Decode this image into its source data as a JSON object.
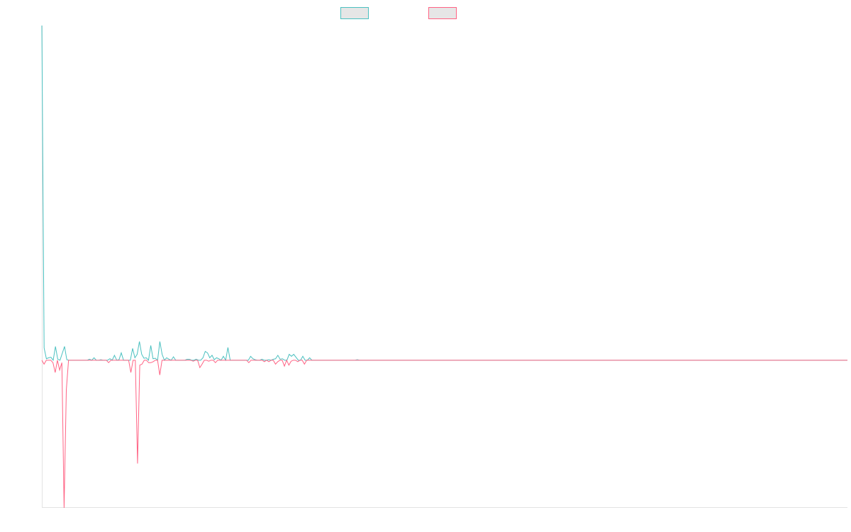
{
  "chart_data": {
    "type": "line",
    "title": "",
    "xlabel": "",
    "ylabel": "",
    "ylim": [
      -300,
      680
    ],
    "grid": false,
    "legend_position": "top-center",
    "point_count": 365,
    "series": [
      {
        "name": "",
        "color": "#4bc0c0",
        "values": [
          680,
          25,
          3,
          5,
          6,
          0,
          28,
          2,
          0,
          14,
          28,
          1,
          0,
          0,
          0,
          0,
          0,
          0,
          0,
          0,
          0,
          2,
          0,
          5,
          0,
          0,
          1,
          0,
          0,
          0,
          3,
          0,
          10,
          0,
          1,
          15,
          0,
          0,
          0,
          0,
          24,
          5,
          12,
          38,
          12,
          4,
          5,
          0,
          30,
          3,
          4,
          0,
          38,
          12,
          0,
          5,
          2,
          0,
          7,
          0,
          0,
          0,
          0,
          0,
          2,
          2,
          0,
          0,
          2,
          0,
          0,
          5,
          18,
          15,
          5,
          10,
          1,
          5,
          3,
          0,
          8,
          0,
          26,
          0,
          0,
          0,
          0,
          0,
          0,
          0,
          0,
          0,
          8,
          3,
          1,
          0,
          0,
          2,
          0,
          0,
          1,
          0,
          2,
          3,
          10,
          2,
          3,
          0,
          0,
          12,
          8,
          12,
          6,
          0,
          0,
          8,
          0,
          0,
          5,
          0,
          0,
          0,
          0,
          0,
          0,
          0,
          0,
          0,
          0,
          0,
          0,
          0,
          0,
          0,
          0,
          0,
          0,
          0,
          0,
          1,
          0,
          0,
          0,
          0,
          0,
          0,
          0,
          0,
          0,
          0,
          0,
          0,
          0,
          0,
          0,
          0,
          0,
          0,
          0,
          0,
          0,
          0,
          0,
          0,
          0,
          0,
          0,
          0,
          0,
          0,
          0,
          0,
          0,
          0,
          0,
          0,
          0,
          0,
          0,
          0,
          0,
          0,
          0,
          0,
          0,
          0,
          0,
          0,
          0,
          0,
          0,
          0,
          0,
          0,
          0,
          0,
          0,
          0,
          0,
          0,
          0,
          0,
          0,
          0,
          0,
          0,
          0,
          0,
          0,
          0,
          0,
          0,
          0,
          0,
          0,
          0,
          0,
          0,
          0,
          0,
          0,
          0,
          0,
          0,
          0,
          0,
          0,
          0,
          0,
          0,
          0,
          0,
          0,
          0,
          0,
          0,
          0,
          0,
          0,
          0,
          0,
          0,
          0,
          0,
          0,
          0,
          0,
          0,
          0,
          0,
          0,
          0,
          0,
          0,
          0,
          0,
          0,
          0,
          0,
          0,
          0,
          0,
          0,
          0,
          0,
          0,
          0,
          0,
          0,
          0,
          0,
          0,
          0,
          0,
          0,
          0,
          0,
          0,
          0,
          0,
          0,
          0,
          0,
          0,
          0,
          0,
          0,
          0,
          0,
          0,
          0,
          0,
          0,
          0,
          0,
          0,
          0,
          0,
          0,
          0,
          0,
          0,
          0,
          0,
          0,
          0,
          0,
          0,
          0,
          0,
          0,
          0,
          0,
          0,
          0,
          0,
          0,
          0,
          0,
          0,
          0,
          0,
          0,
          0,
          0,
          0,
          0,
          0,
          0,
          0,
          0,
          0,
          0,
          0,
          0,
          0,
          0,
          0,
          0,
          0,
          0,
          0,
          0,
          0,
          0,
          0,
          0,
          0,
          0,
          0,
          0,
          0,
          0,
          0,
          0,
          0
        ]
      },
      {
        "name": "",
        "color": "#ff6384",
        "values": [
          0,
          -8,
          0,
          0,
          0,
          -5,
          -25,
          0,
          -20,
          -5,
          -300,
          -60,
          0,
          0,
          0,
          0,
          0,
          0,
          0,
          0,
          0,
          0,
          0,
          0,
          0,
          0,
          0,
          0,
          0,
          0,
          -5,
          0,
          0,
          0,
          0,
          0,
          0,
          0,
          0,
          0,
          -25,
          0,
          0,
          -210,
          -10,
          -8,
          0,
          0,
          -5,
          -5,
          -3,
          0,
          0,
          -30,
          0,
          0,
          0,
          0,
          0,
          0,
          0,
          0,
          0,
          0,
          0,
          0,
          0,
          0,
          -2,
          0,
          0,
          -15,
          -8,
          0,
          0,
          -2,
          0,
          0,
          -5,
          0,
          0,
          0,
          0,
          0,
          0,
          0,
          0,
          0,
          0,
          0,
          0,
          0,
          0,
          -5,
          0,
          0,
          0,
          0,
          0,
          0,
          -3,
          0,
          -3,
          0,
          0,
          -8,
          -3,
          0,
          0,
          -12,
          0,
          -10,
          -2,
          0,
          0,
          -3,
          0,
          0,
          -8,
          0,
          0,
          0,
          0,
          0,
          0,
          0,
          0,
          0,
          0,
          0,
          0,
          0,
          0,
          0,
          0,
          0,
          0,
          0,
          0,
          0,
          0,
          0,
          0,
          0,
          0,
          0,
          0,
          0,
          0,
          0,
          0,
          0,
          0,
          0,
          0,
          0,
          0,
          0,
          0,
          0,
          0,
          0,
          0,
          0,
          0,
          0,
          0,
          0,
          0,
          0,
          0,
          0,
          0,
          0,
          0,
          0,
          0,
          0,
          0,
          0,
          0,
          0,
          0,
          0,
          0,
          0,
          0,
          0,
          0,
          0,
          0,
          0,
          0,
          0,
          0,
          0,
          0,
          0,
          0,
          0,
          0,
          0,
          0,
          0,
          0,
          0,
          0,
          0,
          0,
          0,
          0,
          0,
          0,
          0,
          0,
          0,
          0,
          0,
          0,
          0,
          0,
          0,
          0,
          0,
          0,
          0,
          0,
          0,
          0,
          0,
          0,
          0,
          0,
          0,
          0,
          0,
          0,
          0,
          0,
          0,
          0,
          0,
          0,
          0,
          0,
          0,
          0,
          0,
          0,
          0,
          0,
          0,
          0,
          0,
          0,
          0,
          0,
          0,
          0,
          0,
          0,
          0,
          0,
          0,
          0,
          0,
          0,
          0,
          0,
          0,
          0,
          0,
          0,
          0,
          0,
          0,
          0,
          0,
          0,
          0,
          0,
          0,
          0,
          0,
          0,
          0,
          0,
          0,
          0,
          0,
          0,
          0,
          0,
          0,
          0,
          0,
          0,
          0,
          0,
          0,
          0,
          0,
          0,
          0,
          0,
          0,
          0,
          0,
          0,
          0,
          0,
          0,
          0,
          0,
          0,
          0,
          0,
          0,
          0,
          0,
          0,
          0,
          0,
          0,
          0,
          0,
          0,
          0,
          0,
          0,
          0,
          0,
          0,
          0,
          0,
          0,
          0,
          0,
          0,
          0,
          0,
          0,
          0,
          0,
          0,
          0,
          0,
          0,
          0,
          0,
          0,
          0,
          0,
          0,
          0,
          0,
          0,
          0,
          0,
          0,
          0,
          0,
          0
        ]
      }
    ]
  }
}
